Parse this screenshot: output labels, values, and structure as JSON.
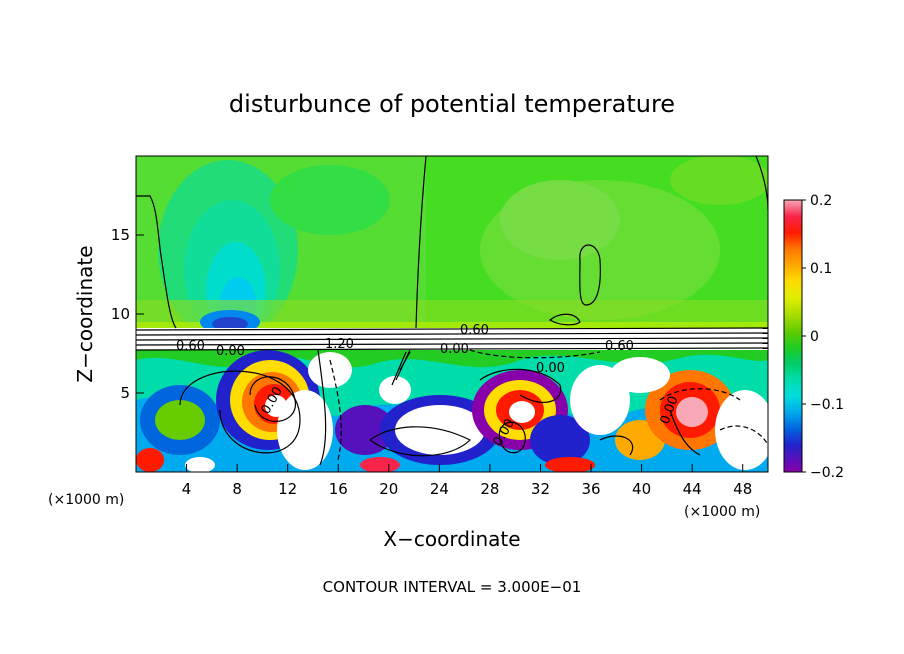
{
  "chart_data": {
    "type": "heatmap",
    "title": "disturbunce of potential temperature",
    "xlabel": "X−coordinate",
    "ylabel": "Z−coordinate",
    "x_unit_left": "(×1000 m)",
    "x_unit_right": "(×1000 m)",
    "footer": "CONTOUR INTERVAL = 3.000E−01",
    "xlim": [
      0,
      50
    ],
    "ylim": [
      0,
      20
    ],
    "x_ticks": [
      4,
      8,
      12,
      16,
      20,
      24,
      28,
      32,
      36,
      40,
      44,
      48
    ],
    "y_ticks": [
      5,
      10,
      15
    ],
    "colorbar": {
      "min": -0.2,
      "max": 0.2,
      "tick_values": [
        0.2,
        0.1,
        0,
        -0.1,
        -0.2
      ],
      "tick_labels": [
        "0.2",
        "0.1",
        "0",
        "−0.1",
        "−0.2"
      ],
      "colors": [
        "#f9a8b8",
        "#f8244a",
        "#ff1a00",
        "#ff7700",
        "#ffaa00",
        "#ffdd00",
        "#e0ee00",
        "#aadd00",
        "#66cc00",
        "#22cc22",
        "#00cc66",
        "#00ddaa",
        "#00dddd",
        "#00aaee",
        "#0066dd",
        "#2222cc",
        "#5511bb",
        "#8800aa"
      ]
    },
    "contour_labels": [
      "0.60",
      "0.00",
      "1.20",
      "0.60",
      "0.00",
      "0.00",
      "0.60",
      "0.00",
      "0.00",
      "0.00"
    ]
  }
}
